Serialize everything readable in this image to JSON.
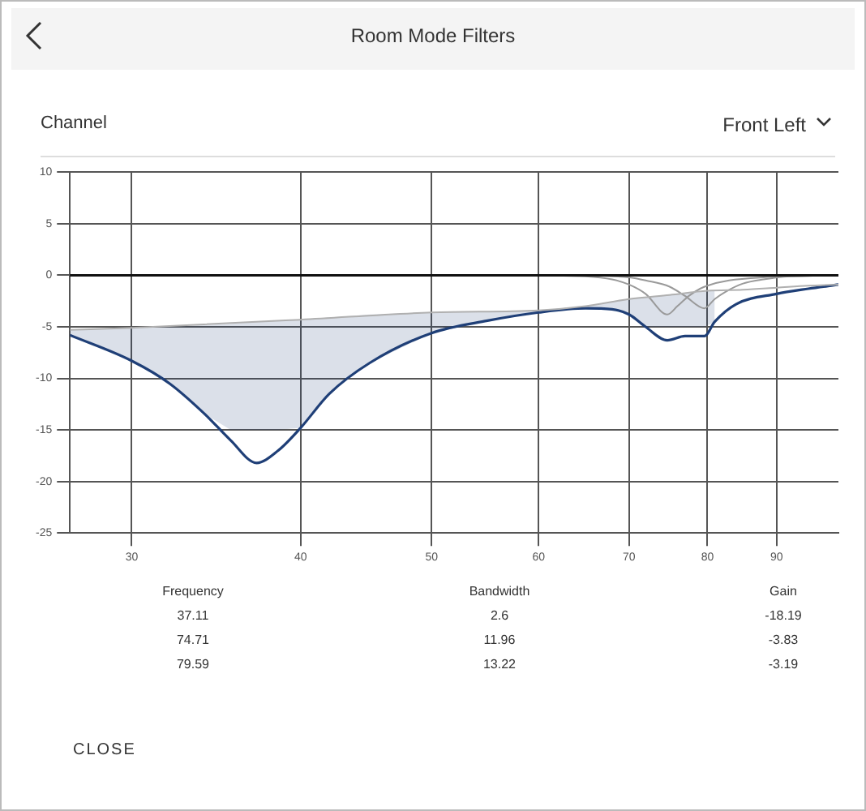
{
  "chart_data": {
    "type": "line",
    "title": "Room Mode Filters",
    "xlim": [
      27,
      100
    ],
    "xticks": [
      30,
      40,
      50,
      60,
      70,
      80,
      90
    ],
    "log": "x",
    "ylim": [
      -25,
      10
    ],
    "yticks": [
      -25,
      -20,
      -15,
      -10,
      -5,
      0,
      5,
      10
    ],
    "grid": true,
    "legend": false,
    "marker": "none",
    "line_style": "solid",
    "ref_lines": [
      {
        "axis": "y",
        "value": 0,
        "color": "#111111"
      }
    ],
    "series": [
      {
        "color": "#b0b0b0",
        "x": [
          27,
          30,
          40,
          50,
          60,
          65,
          70,
          75,
          80,
          85,
          90,
          95,
          100
        ],
        "values": [
          -5.3,
          -5.1,
          -4.3,
          -3.6,
          -3.4,
          -3.0,
          -2.3,
          -1.9,
          -1.5,
          -1.4,
          -1.2,
          -1.0,
          -0.9
        ]
      },
      {
        "color": "#9a9a9a",
        "x": [
          60,
          65,
          68,
          70,
          72,
          74.71,
          76,
          77.5,
          79,
          80,
          83,
          88,
          100
        ],
        "values": [
          0,
          -0.1,
          -0.4,
          -0.9,
          -1.8,
          -3.8,
          -3,
          -2,
          -1.3,
          -1,
          -0.5,
          -0.2,
          0
        ]
      },
      {
        "color": "#9a9a9a",
        "x": [
          65,
          70,
          72,
          75,
          77,
          79.59,
          81,
          82.5,
          85,
          88,
          92,
          100
        ],
        "values": [
          0,
          -0.2,
          -0.5,
          -1.1,
          -2,
          -3.2,
          -2.3,
          -1.6,
          -0.8,
          -0.4,
          -0.1,
          0
        ]
      },
      {
        "color": "#1f3f77",
        "x": [
          27,
          30,
          32,
          34,
          35.5,
          37.11,
          38.5,
          40,
          42,
          45,
          50,
          55,
          60,
          65,
          68,
          70,
          72,
          74.71,
          77,
          79.59,
          81,
          84,
          90,
          95,
          100
        ],
        "values": [
          -5.8,
          -8.3,
          -10.5,
          -13.5,
          -16,
          -18.2,
          -17,
          -14.8,
          -11.5,
          -8.5,
          -5.6,
          -4.4,
          -3.6,
          -3.2,
          -3.3,
          -3.8,
          -5,
          -6.3,
          -5.9,
          -5.9,
          -4.5,
          -2.8,
          -1.8,
          -1.3,
          -0.9
        ],
        "lower": [
          -5.8,
          -8.3,
          -10.5,
          -13.5,
          -15,
          -15,
          -15,
          -14.8,
          -11.5,
          -8.5,
          -5.6,
          -4.4,
          -3.6,
          -3.2,
          -3.3,
          -3.8,
          -5,
          -5,
          -5,
          -5,
          -4.5,
          null,
          null,
          null,
          null
        ],
        "upper": [
          -5.3,
          -5.1,
          -5.0,
          -4.8,
          -4.7,
          -4.5,
          -4.4,
          -4.3,
          -4.1,
          -3.8,
          -3.6,
          -3.5,
          -3.4,
          -3.0,
          -2.6,
          -2.3,
          -2.1,
          -1.9,
          -1.7,
          -1.5,
          -1.45,
          null,
          null,
          null,
          null
        ]
      }
    ],
    "annotations": [
      "Channel",
      "Front Left",
      "Frequency",
      "Bandwidth",
      "Gain",
      "37.11",
      "2.6",
      "-18.19",
      "74.71",
      "11.96",
      "-3.83",
      "79.59",
      "13.22",
      "-3.19",
      "CLOSE"
    ]
  }
}
